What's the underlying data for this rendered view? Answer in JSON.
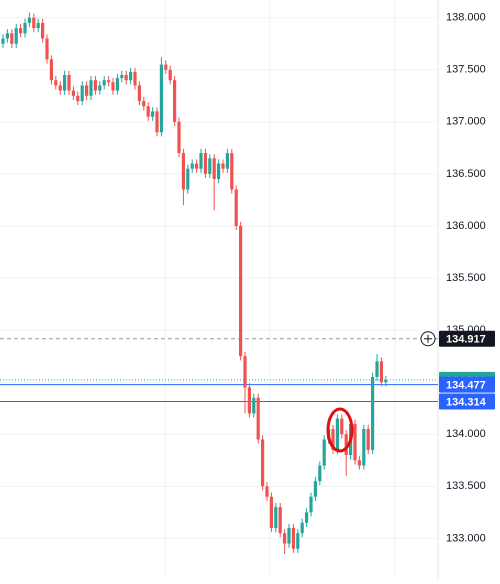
{
  "chart_data": {
    "type": "candlestick",
    "ylim": [
      132.61,
      138.17
    ],
    "yticks": [
      {
        "value": 133,
        "label": "133.000"
      },
      {
        "value": 133.5,
        "label": "133.500"
      },
      {
        "value": 134,
        "label": "134.000"
      },
      {
        "value": 134.5,
        "label": "134.500"
      },
      {
        "value": 135,
        "label": "135.000"
      },
      {
        "value": 135.5,
        "label": "135.500"
      },
      {
        "value": 136,
        "label": "136.000"
      },
      {
        "value": 136.5,
        "label": "136.500"
      },
      {
        "value": 137,
        "label": "137.000"
      },
      {
        "value": 137.5,
        "label": "137.500"
      },
      {
        "value": 138,
        "label": "138.000"
      }
    ],
    "up_color": "#26a69a",
    "down_color": "#ef5350",
    "ohlc": [
      [
        137.75,
        137.84,
        137.71,
        137.8
      ],
      [
        137.8,
        137.89,
        137.76,
        137.85
      ],
      [
        137.85,
        137.89,
        137.71,
        137.75
      ],
      [
        137.75,
        137.94,
        137.71,
        137.9
      ],
      [
        137.9,
        137.94,
        137.81,
        137.85
      ],
      [
        137.85,
        137.99,
        137.81,
        137.95
      ],
      [
        137.95,
        138.05,
        137.91,
        138.0
      ],
      [
        138.0,
        138.04,
        137.86,
        137.9
      ],
      [
        137.9,
        137.99,
        137.86,
        137.95
      ],
      [
        137.95,
        137.99,
        137.76,
        137.8
      ],
      [
        137.8,
        137.84,
        137.56,
        137.6
      ],
      [
        137.6,
        137.64,
        137.36,
        137.4
      ],
      [
        137.4,
        137.44,
        137.31,
        137.35
      ],
      [
        137.35,
        137.39,
        137.26,
        137.3
      ],
      [
        137.3,
        137.49,
        137.26,
        137.45
      ],
      [
        137.45,
        137.49,
        137.26,
        137.3
      ],
      [
        137.3,
        137.34,
        137.21,
        137.25
      ],
      [
        137.25,
        137.29,
        137.16,
        137.2
      ],
      [
        137.2,
        137.39,
        137.16,
        137.35
      ],
      [
        137.35,
        137.39,
        137.21,
        137.25
      ],
      [
        137.25,
        137.44,
        137.21,
        137.4
      ],
      [
        137.4,
        137.44,
        137.26,
        137.3
      ],
      [
        137.3,
        137.39,
        137.26,
        137.35
      ],
      [
        137.35,
        137.44,
        137.31,
        137.4
      ],
      [
        137.4,
        137.44,
        137.34,
        137.38
      ],
      [
        137.38,
        137.42,
        137.26,
        137.3
      ],
      [
        137.3,
        137.46,
        137.26,
        137.42
      ],
      [
        137.42,
        137.49,
        137.38,
        137.45
      ],
      [
        137.45,
        137.49,
        137.36,
        137.4
      ],
      [
        137.4,
        137.52,
        137.36,
        137.48
      ],
      [
        137.48,
        137.52,
        137.31,
        137.35
      ],
      [
        137.35,
        137.39,
        137.16,
        137.2
      ],
      [
        137.2,
        137.24,
        137.11,
        137.15
      ],
      [
        137.15,
        137.19,
        137.01,
        137.05
      ],
      [
        137.05,
        137.14,
        137.01,
        137.1
      ],
      [
        137.1,
        137.14,
        136.86,
        136.9
      ],
      [
        136.9,
        137.62,
        136.86,
        137.55
      ],
      [
        137.55,
        137.59,
        137.46,
        137.5
      ],
      [
        137.5,
        137.54,
        137.36,
        137.4
      ],
      [
        137.4,
        137.44,
        136.96,
        137.0
      ],
      [
        137.0,
        137.04,
        136.66,
        136.7
      ],
      [
        136.7,
        136.74,
        136.2,
        136.35
      ],
      [
        136.35,
        136.59,
        136.31,
        136.55
      ],
      [
        136.55,
        136.64,
        136.51,
        136.6
      ],
      [
        136.6,
        136.64,
        136.51,
        136.55
      ],
      [
        136.55,
        136.74,
        136.51,
        136.7
      ],
      [
        136.7,
        136.74,
        136.46,
        136.5
      ],
      [
        136.5,
        136.69,
        136.46,
        136.65
      ],
      [
        136.65,
        136.69,
        136.15,
        136.45
      ],
      [
        136.45,
        136.64,
        136.41,
        136.6
      ],
      [
        136.6,
        136.64,
        136.51,
        136.55
      ],
      [
        136.55,
        136.74,
        136.51,
        136.7
      ],
      [
        136.7,
        136.74,
        136.31,
        136.35
      ],
      [
        136.35,
        136.39,
        135.96,
        136.0
      ],
      [
        136.0,
        136.04,
        134.71,
        134.75
      ],
      [
        134.75,
        134.79,
        134.2,
        134.45
      ],
      [
        134.45,
        134.49,
        134.16,
        134.2
      ],
      [
        134.2,
        134.39,
        134.16,
        134.35
      ],
      [
        134.35,
        134.39,
        133.91,
        133.95
      ],
      [
        133.95,
        133.99,
        133.46,
        133.5
      ],
      [
        133.5,
        133.54,
        133.36,
        133.4
      ],
      [
        133.4,
        133.44,
        133.06,
        133.1
      ],
      [
        133.1,
        133.34,
        133.06,
        133.3
      ],
      [
        133.3,
        133.34,
        133.01,
        133.05
      ],
      [
        133.05,
        133.09,
        132.85,
        132.95
      ],
      [
        132.95,
        133.14,
        132.91,
        133.1
      ],
      [
        133.1,
        133.14,
        132.86,
        132.9
      ],
      [
        132.9,
        133.09,
        132.86,
        133.05
      ],
      [
        133.05,
        133.19,
        133.01,
        133.15
      ],
      [
        133.15,
        133.29,
        133.11,
        133.25
      ],
      [
        133.25,
        133.44,
        133.21,
        133.4
      ],
      [
        133.4,
        133.59,
        133.36,
        133.55
      ],
      [
        133.55,
        133.74,
        133.51,
        133.7
      ],
      [
        133.7,
        133.99,
        133.66,
        133.95
      ],
      [
        133.95,
        134.09,
        133.91,
        134.05
      ],
      [
        134.05,
        134.09,
        133.81,
        133.85
      ],
      [
        133.85,
        134.19,
        133.81,
        134.15
      ],
      [
        134.15,
        134.19,
        133.96,
        134.0
      ],
      [
        134.0,
        134.04,
        133.6,
        133.8
      ],
      [
        133.8,
        134.14,
        133.76,
        134.1
      ],
      [
        134.1,
        134.14,
        133.71,
        133.75
      ],
      [
        133.75,
        133.79,
        133.66,
        133.7
      ],
      [
        133.7,
        134.09,
        133.66,
        134.05
      ],
      [
        134.05,
        134.09,
        133.81,
        133.85
      ],
      [
        133.85,
        134.59,
        133.81,
        134.55
      ],
      [
        134.55,
        134.77,
        134.51,
        134.7
      ],
      [
        134.7,
        134.74,
        134.46,
        134.5
      ],
      [
        134.5,
        134.56,
        134.46,
        134.52
      ]
    ],
    "price_lines": [
      {
        "value": 134.917,
        "color": "#131722",
        "style": "dashed"
      },
      {
        "value": 134.522,
        "color": "#26a69a",
        "style": "dotted"
      },
      {
        "value": 134.477,
        "color": "#2962ff",
        "style": "solid"
      },
      {
        "value": 134.314,
        "color": "#2962ff",
        "style": "solid"
      }
    ]
  }
}
